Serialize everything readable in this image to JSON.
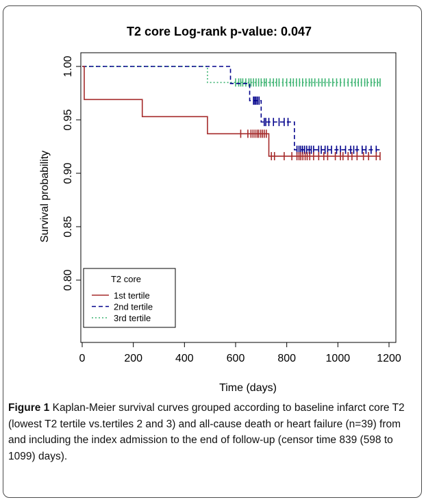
{
  "chart_data": {
    "type": "line",
    "subtype": "kaplan-meier step survival curves",
    "title": "T2 core Log-rank p-value: 0.047",
    "xlabel": "Time (days)",
    "ylabel": "Survival probability",
    "xlim": [
      0,
      1200
    ],
    "ylim": [
      0.76,
      1.005
    ],
    "x_ticks": [
      0,
      200,
      400,
      600,
      800,
      1000,
      1200
    ],
    "y_ticks": [
      0.8,
      0.85,
      0.9,
      0.95,
      1.0
    ],
    "x_tick_labels": [
      "0",
      "200",
      "400",
      "600",
      "800",
      "1000",
      "1200"
    ],
    "y_tick_labels": [
      "0.80",
      "0.85",
      "0.90",
      "0.95",
      "1.00"
    ],
    "grid": false,
    "legend": {
      "title": "T2 core",
      "placement": "bottom-left",
      "entries": [
        "1st tertile",
        "2nd tertile",
        "3rd tertile"
      ]
    },
    "series": [
      {
        "name": "1st tertile",
        "color": "#a52a2a",
        "line_style": "solid",
        "steps": [
          [
            0,
            1.0
          ],
          [
            8,
            0.969
          ],
          [
            235,
            0.953
          ],
          [
            490,
            0.937
          ],
          [
            730,
            0.916
          ],
          [
            1165,
            0.916
          ]
        ],
        "censor_times": [
          620,
          648,
          660,
          668,
          676,
          684,
          690,
          698,
          705,
          712,
          720,
          740,
          752,
          790,
          820,
          840,
          848,
          855,
          863,
          872,
          880,
          890,
          905,
          925,
          945,
          960,
          990,
          1010,
          1020,
          1040,
          1055,
          1075,
          1100,
          1120,
          1150,
          1165
        ]
      },
      {
        "name": "2nd tertile",
        "color": "#00008b",
        "line_style": "dashed",
        "steps": [
          [
            0,
            1.0
          ],
          [
            580,
            0.984
          ],
          [
            655,
            0.968
          ],
          [
            700,
            0.948
          ],
          [
            830,
            0.922
          ],
          [
            1165,
            0.922
          ]
        ],
        "censor_times": [
          670,
          675,
          680,
          686,
          692,
          712,
          718,
          730,
          748,
          770,
          790,
          805,
          840,
          848,
          855,
          862,
          870,
          878,
          888,
          896,
          905,
          925,
          935,
          950,
          960,
          975,
          995,
          1010,
          1030,
          1050,
          1062,
          1075,
          1095,
          1110,
          1130,
          1150
        ]
      },
      {
        "name": "3rd tertile",
        "color": "#3cb371",
        "line_style": "dotted",
        "steps": [
          [
            0,
            1.0
          ],
          [
            490,
            0.985
          ],
          [
            1165,
            0.985
          ]
        ],
        "censor_times": [
          600,
          612,
          620,
          628,
          640,
          652,
          660,
          670,
          680,
          690,
          700,
          712,
          720,
          735,
          748,
          760,
          770,
          785,
          800,
          815,
          826,
          838,
          850,
          862,
          875,
          888,
          898,
          910,
          925,
          938,
          950,
          965,
          980,
          995,
          1010,
          1025,
          1040,
          1055,
          1068,
          1080,
          1092,
          1105,
          1115,
          1130,
          1142,
          1155,
          1165
        ]
      }
    ]
  },
  "caption": {
    "label": "Figure 1",
    "text": " Kaplan-Meier survival curves grouped according to baseline infarct core T2 (lowest T2 tertile vs.tertiles 2 and 3) and all-cause death or heart failure (n=39) from and including the index admission to the end of follow-up (censor time 839 (598 to 1099) days)."
  }
}
